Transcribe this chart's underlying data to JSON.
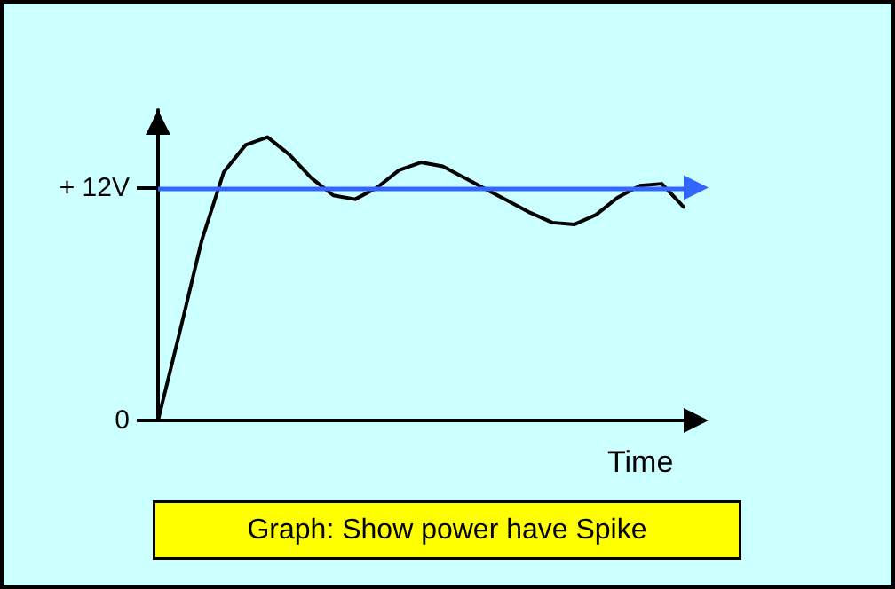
{
  "chart_data": {
    "type": "line",
    "xlabel": "Time",
    "categories": [
      null,
      null,
      null,
      null,
      null,
      null,
      null,
      null,
      null,
      null,
      null,
      null,
      null,
      null,
      null,
      null,
      null,
      null,
      null,
      null,
      null,
      null,
      null,
      null,
      null
    ],
    "series": [
      {
        "color": "#000000",
        "values": [
          0,
          4.6,
          9.3,
          12.8,
          14.2,
          14.6,
          13.7,
          12.5,
          11.6,
          11.4,
          12.0,
          12.9,
          13.3,
          13.1,
          12.5,
          11.9,
          11.3,
          10.7,
          10.2,
          10.1,
          10.6,
          11.5,
          12.1,
          12.2,
          11.0
        ]
      }
    ],
    "ylim": [
      0,
      16
    ],
    "yticks": [
      {
        "value": 0,
        "label": "0"
      },
      {
        "value": 12,
        "label": "+ 12V"
      }
    ],
    "ref_lines": [
      {
        "axis": "y",
        "value": 12,
        "color": "#3366ff"
      }
    ],
    "annotations": [
      "Graph: Show power have Spike"
    ],
    "marker": "none",
    "line_style": "solid",
    "grid": false
  }
}
